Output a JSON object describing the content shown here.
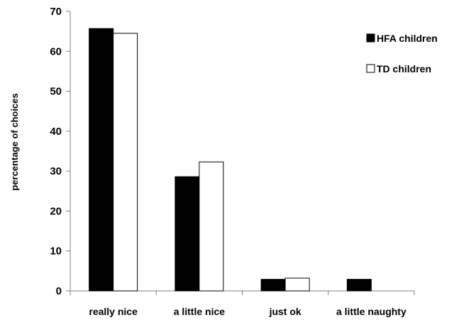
{
  "chart_data": {
    "type": "bar",
    "title": "",
    "xlabel": "",
    "ylabel": "percentage of choices",
    "ylim": [
      0,
      70
    ],
    "yticks": [
      0,
      10,
      20,
      30,
      40,
      50,
      60,
      70
    ],
    "categories": [
      "really nice",
      "a little nice",
      "just ok",
      "a little naughty"
    ],
    "series": [
      {
        "name": "HFA children",
        "fill": "#000000",
        "values": [
          65.7,
          28.6,
          2.9,
          2.9
        ]
      },
      {
        "name": "TD children",
        "fill": "#ffffff",
        "values": [
          64.5,
          32.3,
          3.2,
          0
        ]
      }
    ],
    "grid": false,
    "legend_position": "top-right"
  }
}
